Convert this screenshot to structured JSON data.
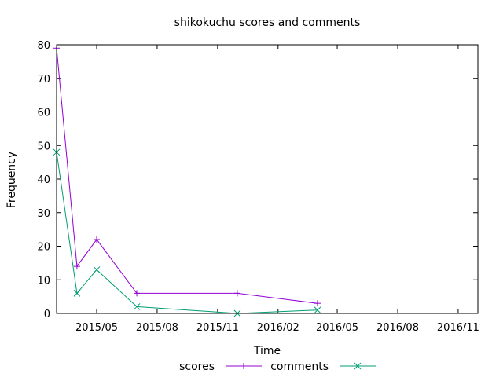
{
  "chart_data": {
    "type": "line",
    "title": "shikokuchu scores and comments",
    "xlabel": "Time",
    "ylabel": "Frequency",
    "xlim": [
      "2015-03-01",
      "2016-12-01"
    ],
    "ylim": [
      0,
      80
    ],
    "y_ticks": [
      0,
      10,
      20,
      30,
      40,
      50,
      60,
      70,
      80
    ],
    "x_ticks": [
      {
        "date": "2015-05-01",
        "label": "2015/05"
      },
      {
        "date": "2015-08-01",
        "label": "2015/08"
      },
      {
        "date": "2015-11-01",
        "label": "2015/11"
      },
      {
        "date": "2016-02-01",
        "label": "2016/02"
      },
      {
        "date": "2016-05-01",
        "label": "2016/05"
      },
      {
        "date": "2016-08-01",
        "label": "2016/08"
      },
      {
        "date": "2016-11-01",
        "label": "2016/11"
      }
    ],
    "grid": false,
    "legend_position": "bottom-center",
    "series": [
      {
        "name": "scores",
        "color": "#9400d3",
        "marker": "plus",
        "points": [
          {
            "x": "2015-03-01",
            "y": 79
          },
          {
            "x": "2015-04-01",
            "y": 14
          },
          {
            "x": "2015-05-01",
            "y": 22
          },
          {
            "x": "2015-07-01",
            "y": 6
          },
          {
            "x": "2015-12-01",
            "y": 6
          },
          {
            "x": "2016-04-01",
            "y": 3
          }
        ]
      },
      {
        "name": "comments",
        "color": "#009e73",
        "marker": "cross",
        "points": [
          {
            "x": "2015-03-01",
            "y": 48
          },
          {
            "x": "2015-04-01",
            "y": 6
          },
          {
            "x": "2015-05-01",
            "y": 13
          },
          {
            "x": "2015-07-01",
            "y": 2
          },
          {
            "x": "2015-12-01",
            "y": 0
          },
          {
            "x": "2016-04-01",
            "y": 1
          }
        ]
      }
    ]
  }
}
